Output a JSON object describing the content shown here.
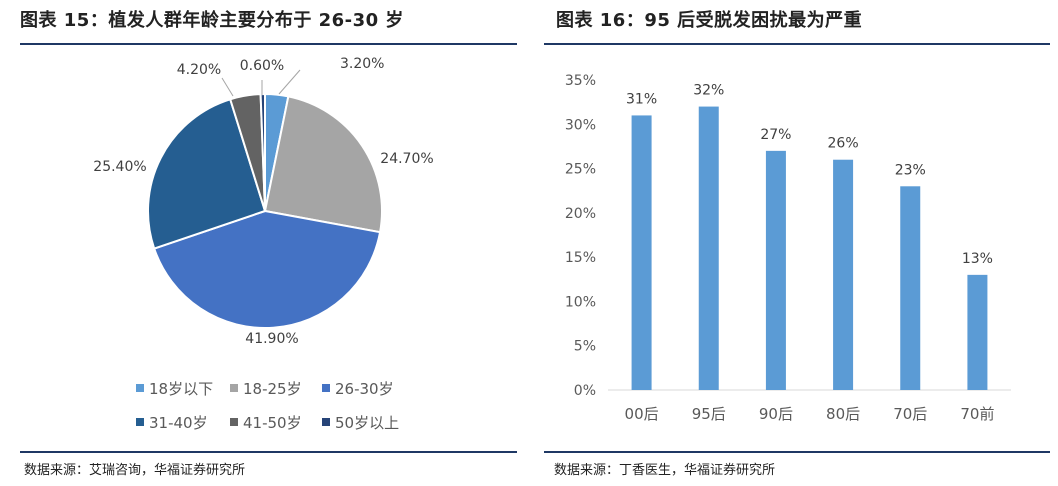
{
  "left": {
    "title": "图表 15：植发人群年龄主要分布于 26-30 岁",
    "source": "数据来源：艾瑞咨询，华福证券研究所",
    "rule_color": "#1f3864"
  },
  "right": {
    "title": "图表 16：95 后受脱发困扰最为严重",
    "source": "数据来源：丁香医生，华福证券研究所",
    "rule_color": "#1f3864"
  },
  "chart_data": [
    {
      "type": "pie",
      "title": "",
      "labels": [
        "18岁以下",
        "18-25岁",
        "26-30岁",
        "31-40岁",
        "41-50岁",
        "50岁以上"
      ],
      "values": [
        3.2,
        24.7,
        41.9,
        25.4,
        4.2,
        0.6
      ],
      "value_labels": [
        "3.20%",
        "24.70%",
        "41.90%",
        "25.40%",
        "4.20%",
        "0.60%"
      ],
      "colors": [
        "#5b9bd5",
        "#a5a5a5",
        "#4472c4",
        "#255e91",
        "#636363",
        "#264478"
      ],
      "legend_position": "bottom",
      "start": "top, clockwise"
    },
    {
      "type": "bar",
      "title": "",
      "categories": [
        "00后",
        "95后",
        "90后",
        "80后",
        "70后",
        "70前"
      ],
      "values": [
        31,
        32,
        27,
        26,
        23,
        13
      ],
      "value_labels": [
        "31%",
        "32%",
        "27%",
        "26%",
        "23%",
        "13%"
      ],
      "yticks": [
        "0%",
        "5%",
        "10%",
        "15%",
        "20%",
        "25%",
        "30%",
        "35%"
      ],
      "ylim": [
        0,
        35
      ],
      "color": "#5b9bd5",
      "xlabel": "",
      "ylabel": "",
      "grid": false
    }
  ]
}
